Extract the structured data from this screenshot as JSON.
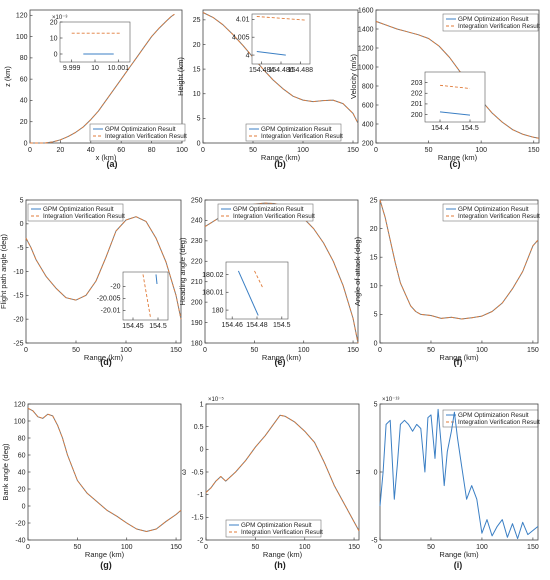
{
  "colors": {
    "gpm": "#3b7fc4",
    "integ": "#e07b39",
    "axis": "#444444"
  },
  "legend_labels": [
    "GPM Optimization Result",
    "Integration Verification Result"
  ],
  "chart_data": [
    {
      "id": "a",
      "type": "line",
      "panel_label": "(a)",
      "xlabel": "x (km)",
      "ylabel": "z (km)",
      "xlim": [
        0,
        100
      ],
      "ylim": [
        0,
        125
      ],
      "xticks": [
        0,
        20,
        40,
        60,
        80,
        100
      ],
      "yticks": [
        0,
        20,
        40,
        60,
        80,
        100,
        120
      ],
      "legend": "bottom-center",
      "series": [
        {
          "name": "GPM Optimization Result",
          "x": [
            0,
            10,
            15,
            20,
            25,
            30,
            35,
            40,
            45,
            50,
            55,
            60,
            65,
            70,
            75,
            80,
            85,
            90,
            93,
            95
          ],
          "y": [
            0,
            0,
            1,
            3,
            6,
            10,
            15,
            22,
            30,
            40,
            50,
            60,
            70,
            80,
            90,
            100,
            108,
            115,
            119,
            121
          ]
        }
      ],
      "inset": {
        "xlim": [
          9.9985,
          10.0015
        ],
        "ylim": [
          -5,
          20
        ],
        "xticks": [
          9.999,
          10,
          10.001
        ],
        "yticks": [
          0,
          10,
          20
        ],
        "exponent": "×10⁻³",
        "series": [
          {
            "name": "GPM Optimization Result",
            "x": [
              9.9995,
              10.0008
            ],
            "y": [
              0,
              0
            ]
          },
          {
            "name": "Integration Verification Result",
            "x": [
              9.999,
              10.0011
            ],
            "y": [
              13,
              13
            ]
          }
        ]
      }
    },
    {
      "id": "b",
      "type": "line",
      "panel_label": "(b)",
      "xlabel": "Range (km)",
      "ylabel": "Height (km)",
      "xlim": [
        0,
        155
      ],
      "ylim": [
        0,
        27
      ],
      "xticks": [
        0,
        50,
        100,
        150
      ],
      "yticks": [
        0,
        5,
        10,
        15,
        20,
        25
      ],
      "legend": "bottom-center",
      "series": [
        {
          "name": "GPM Optimization Result",
          "x": [
            0,
            10,
            20,
            30,
            40,
            50,
            60,
            70,
            80,
            90,
            100,
            110,
            120,
            130,
            140,
            150,
            155
          ],
          "y": [
            26.5,
            25.5,
            24,
            22,
            19.8,
            17.4,
            15,
            12.8,
            11,
            9.5,
            8.7,
            8.4,
            8.6,
            8.7,
            8,
            6,
            4
          ]
        }
      ],
      "inset": {
        "xlim": [
          154.483,
          154.489
        ],
        "ylim": [
          3.9975,
          4.0115
        ],
        "xticks": [
          154.484,
          154.486,
          154.488
        ],
        "yticks": [
          4,
          4.005,
          4.01
        ],
        "series": [
          {
            "name": "GPM Optimization Result",
            "x": [
              154.4835,
              154.4865
            ],
            "y": [
              4.001,
              4.0
            ]
          },
          {
            "name": "Integration Verification Result",
            "x": [
              154.4835,
              154.4885
            ],
            "y": [
              4.0108,
              4.0098
            ]
          }
        ]
      }
    },
    {
      "id": "c",
      "type": "line",
      "panel_label": "(c)",
      "xlabel": "Range (km)",
      "ylabel": "Velocity (m/s)",
      "xlim": [
        0,
        155
      ],
      "ylim": [
        200,
        1600
      ],
      "xticks": [
        0,
        50,
        100,
        150
      ],
      "yticks": [
        200,
        400,
        600,
        800,
        1000,
        1200,
        1400,
        1600
      ],
      "legend": "top-right",
      "series": [
        {
          "name": "GPM Optimization Result",
          "x": [
            0,
            10,
            20,
            30,
            40,
            50,
            60,
            70,
            80,
            90,
            100,
            110,
            120,
            130,
            140,
            150,
            155
          ],
          "y": [
            1480,
            1440,
            1400,
            1370,
            1340,
            1300,
            1220,
            1100,
            950,
            800,
            650,
            520,
            420,
            340,
            290,
            260,
            250
          ]
        }
      ],
      "inset": {
        "xlim": [
          154.35,
          154.55
        ],
        "ylim": [
          199.3,
          204
        ],
        "xticks": [
          154.4,
          154.5
        ],
        "yticks": [
          200,
          201,
          202,
          203
        ],
        "series": [
          {
            "name": "GPM Optimization Result",
            "x": [
              154.4,
              154.5
            ],
            "y": [
              200.25,
              199.95
            ]
          },
          {
            "name": "Integration Verification Result",
            "x": [
              154.4,
              154.5
            ],
            "y": [
              202.75,
              202.45
            ]
          }
        ]
      }
    },
    {
      "id": "d",
      "type": "line",
      "panel_label": "(d)",
      "xlabel": "Range (km)",
      "ylabel": "Flight path angle (deg)",
      "xlim": [
        0,
        155
      ],
      "ylim": [
        -25,
        5
      ],
      "xticks": [
        0,
        50,
        100,
        150
      ],
      "yticks": [
        -25,
        -20,
        -15,
        -10,
        -5,
        0,
        5
      ],
      "legend": "top-left",
      "series": [
        {
          "name": "GPM Optimization Result",
          "x": [
            0,
            5,
            10,
            20,
            30,
            40,
            50,
            60,
            70,
            80,
            90,
            100,
            110,
            120,
            130,
            140,
            150,
            155
          ],
          "y": [
            -3,
            -5,
            -7.5,
            -11,
            -13.5,
            -15.5,
            -16,
            -15,
            -12,
            -7,
            -1.5,
            0.8,
            1.5,
            0.5,
            -3,
            -8,
            -15,
            -20
          ]
        }
      ],
      "inset": {
        "xlim": [
          154.43,
          154.52
        ],
        "ylim": [
          -20.014,
          -19.994
        ],
        "xticks": [
          154.45,
          154.5
        ],
        "yticks": [
          -20.01,
          -20.005,
          -20
        ],
        "series": [
          {
            "name": "GPM Optimization Result",
            "x": [
              154.496,
              154.498
            ],
            "y": [
              -19.995,
              -19.999
            ]
          },
          {
            "name": "Integration Verification Result",
            "x": [
              154.47,
              154.485
            ],
            "y": [
              -19.995,
              -20.013
            ]
          }
        ]
      }
    },
    {
      "id": "e",
      "type": "line",
      "panel_label": "(e)",
      "xlabel": "Range (km)",
      "ylabel": "Heading angle (deg)",
      "xlim": [
        0,
        155
      ],
      "ylim": [
        180,
        250
      ],
      "xticks": [
        0,
        50,
        100,
        150
      ],
      "yticks": [
        180,
        190,
        200,
        210,
        220,
        230,
        240,
        250
      ],
      "legend": "top-center",
      "series": [
        {
          "name": "GPM Optimization Result",
          "x": [
            0,
            10,
            20,
            30,
            40,
            50,
            60,
            70,
            80,
            90,
            100,
            110,
            120,
            130,
            140,
            150,
            155
          ],
          "y": [
            237,
            240,
            243,
            245.5,
            247,
            248,
            248.5,
            248.3,
            247,
            244.5,
            241,
            236,
            229,
            220,
            208,
            192,
            180
          ]
        }
      ],
      "inset": {
        "xlim": [
          154.455,
          154.505
        ],
        "ylim": [
          179.995,
          180.027
        ],
        "xticks": [
          154.46,
          154.48,
          154.5
        ],
        "yticks": [
          180,
          180.01,
          180.02
        ],
        "series": [
          {
            "name": "GPM Optimization Result",
            "x": [
              154.465,
              154.481
            ],
            "y": [
              180.022,
              179.997
            ]
          },
          {
            "name": "Integration Verification Result",
            "x": [
              154.478,
              154.485
            ],
            "y": [
              180.022,
              180.012
            ]
          }
        ]
      }
    },
    {
      "id": "f",
      "type": "line",
      "panel_label": "(f)",
      "xlabel": "Range (km)",
      "ylabel": "Angle of attack (deg)",
      "xlim": [
        0,
        155
      ],
      "ylim": [
        0,
        25
      ],
      "xticks": [
        0,
        50,
        100,
        150
      ],
      "yticks": [
        0,
        5,
        10,
        15,
        20,
        25
      ],
      "legend": "top-right",
      "series": [
        {
          "name": "GPM Optimization Result",
          "x": [
            0,
            5,
            10,
            15,
            20,
            25,
            30,
            35,
            40,
            50,
            60,
            70,
            80,
            90,
            100,
            110,
            120,
            130,
            140,
            150,
            155
          ],
          "y": [
            25,
            22,
            18,
            14,
            10.5,
            8.5,
            6.5,
            5.5,
            5,
            4.8,
            4.3,
            4.5,
            4.2,
            4.4,
            4.7,
            5.5,
            7,
            9.5,
            12.5,
            17,
            18
          ]
        }
      ]
    },
    {
      "id": "g",
      "type": "line",
      "panel_label": "(g)",
      "xlabel": "Range (km)",
      "ylabel": "Bank angle (deg)",
      "xlim": [
        0,
        155
      ],
      "ylim": [
        -40,
        120
      ],
      "xticks": [
        0,
        50,
        100,
        150
      ],
      "yticks": [
        -40,
        -20,
        0,
        20,
        40,
        60,
        80,
        100,
        120
      ],
      "legend": "top-right",
      "series": [
        {
          "name": "GPM Optimization Result",
          "x": [
            0,
            5,
            10,
            15,
            20,
            25,
            30,
            35,
            40,
            50,
            60,
            70,
            80,
            90,
            100,
            110,
            120,
            130,
            140,
            150,
            155
          ],
          "y": [
            115,
            112,
            105,
            103,
            108,
            106,
            95,
            80,
            60,
            30,
            15,
            5,
            -5,
            -12,
            -20,
            -27,
            -30,
            -27,
            -18,
            -10,
            -5
          ]
        }
      ]
    },
    {
      "id": "h",
      "type": "line",
      "panel_label": "(h)",
      "xlabel": "Range (km)",
      "ylabel": "ω",
      "ylabel_exponent": "×10⁻⁵",
      "xlim": [
        0,
        155
      ],
      "ylim": [
        -2,
        1
      ],
      "xticks": [
        0,
        50,
        100,
        150
      ],
      "yticks": [
        -2,
        -1.5,
        -1,
        -0.5,
        0,
        0.5,
        1
      ],
      "legend": "bottom-center",
      "series": [
        {
          "name": "GPM Optimization Result",
          "x": [
            0,
            5,
            10,
            15,
            20,
            25,
            30,
            40,
            50,
            60,
            70,
            75,
            80,
            90,
            100,
            110,
            120,
            130,
            140,
            150,
            155
          ],
          "y": [
            -0.95,
            -0.85,
            -0.7,
            -0.6,
            -0.7,
            -0.6,
            -0.5,
            -0.25,
            0.05,
            0.3,
            0.6,
            0.75,
            0.73,
            0.6,
            0.4,
            0.15,
            -0.3,
            -0.8,
            -1.2,
            -1.6,
            -1.8
          ]
        }
      ]
    },
    {
      "id": "i",
      "type": "line",
      "panel_label": "(i)",
      "xlabel": "Range (km)",
      "ylabel": "u",
      "ylabel_exponent": "×10⁻¹³",
      "xlim": [
        0,
        155
      ],
      "ylim": [
        -5,
        5
      ],
      "xticks": [
        0,
        50,
        100,
        150
      ],
      "yticks": [
        -5,
        0,
        5
      ],
      "series": [
        {
          "name": "u",
          "x": [
            0,
            3,
            6,
            10,
            14,
            17,
            20,
            24,
            28,
            32,
            36,
            40,
            44,
            47,
            50,
            54,
            57,
            60,
            63,
            66,
            70,
            73,
            76,
            80,
            85,
            90,
            95,
            100,
            105,
            110,
            115,
            120,
            125,
            130,
            135,
            140,
            145,
            150,
            155
          ],
          "y": [
            -2.5,
            0,
            3.5,
            3.8,
            -2,
            0.5,
            3.5,
            3.8,
            3.5,
            3,
            3.5,
            3.2,
            0,
            4,
            4.2,
            1,
            4.6,
            2,
            -1,
            1.5,
            3,
            4.4,
            2.5,
            0.5,
            -2,
            -1,
            -2,
            -4.5,
            -3.5,
            -4.7,
            -4,
            -3.5,
            -4.8,
            -3.8,
            -4.9,
            -3.7,
            -4.6,
            -4.3,
            -4
          ]
        }
      ]
    }
  ]
}
